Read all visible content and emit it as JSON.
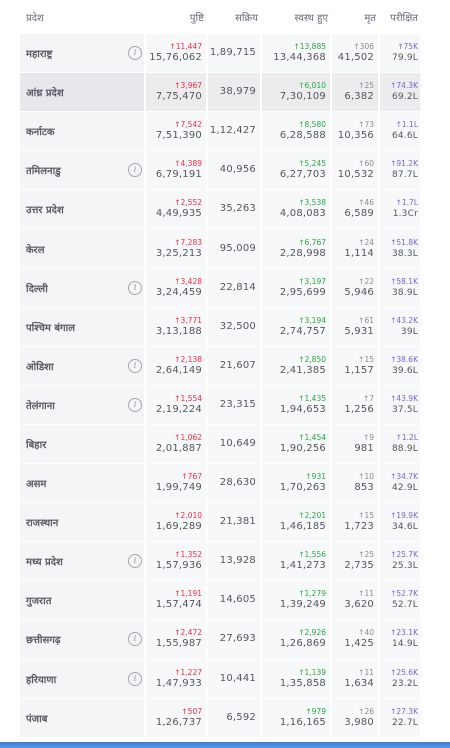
{
  "headers": {
    "state": "प्रदेश",
    "confirmed": "पुष्टि",
    "active": "सक्रिय",
    "recovered": "स्वस्थ हुए",
    "deceased": "मृत",
    "tested": "परीक्षित"
  },
  "rows": [
    {
      "state": "महाराष्ट्र",
      "info": true,
      "c_delta": "↑11,447",
      "confirmed": "15,76,062",
      "active": "1,89,715",
      "r_delta": "↑13,885",
      "recovered": "13,44,368",
      "d_delta": "↑306",
      "deceased": "41,502",
      "t_delta": "↑75K",
      "tested": "79.9L"
    },
    {
      "state": "आंध्र प्रदेश",
      "info": false,
      "highlight": true,
      "c_delta": "↑3,967",
      "confirmed": "7,75,470",
      "active": "38,979",
      "r_delta": "↑6,010",
      "recovered": "7,30,109",
      "d_delta": "↑25",
      "deceased": "6,382",
      "t_delta": "↑74.3K",
      "tested": "69.2L"
    },
    {
      "state": "कर्नाटक",
      "info": false,
      "c_delta": "↑7,542",
      "confirmed": "7,51,390",
      "active": "1,12,427",
      "r_delta": "↑8,580",
      "recovered": "6,28,588",
      "d_delta": "↑73",
      "deceased": "10,356",
      "t_delta": "↑1.1L",
      "tested": "64.6L"
    },
    {
      "state": "तमिलनाडु",
      "info": true,
      "c_delta": "↑4,389",
      "confirmed": "6,79,191",
      "active": "40,956",
      "r_delta": "↑5,245",
      "recovered": "6,27,703",
      "d_delta": "↑60",
      "deceased": "10,532",
      "t_delta": "↑91.2K",
      "tested": "87.7L"
    },
    {
      "state": "उत्तर प्रदेश",
      "info": false,
      "c_delta": "↑2,552",
      "confirmed": "4,49,935",
      "active": "35,263",
      "r_delta": "↑3,538",
      "recovered": "4,08,083",
      "d_delta": "↑46",
      "deceased": "6,589",
      "t_delta": "↑1.7L",
      "tested": "1.3Cr"
    },
    {
      "state": "केरल",
      "info": false,
      "c_delta": "↑7,283",
      "confirmed": "3,25,213",
      "active": "95,009",
      "r_delta": "↑6,767",
      "recovered": "2,28,998",
      "d_delta": "↑24",
      "deceased": "1,114",
      "t_delta": "↑51.8K",
      "tested": "38.3L"
    },
    {
      "state": "दिल्ली",
      "info": true,
      "c_delta": "↑3,428",
      "confirmed": "3,24,459",
      "active": "22,814",
      "r_delta": "↑3,197",
      "recovered": "2,95,699",
      "d_delta": "↑22",
      "deceased": "5,946",
      "t_delta": "↑58.1K",
      "tested": "38.9L"
    },
    {
      "state": "पश्चिम बंगाल",
      "info": false,
      "c_delta": "↑3,771",
      "confirmed": "3,13,188",
      "active": "32,500",
      "r_delta": "↑3,194",
      "recovered": "2,74,757",
      "d_delta": "↑61",
      "deceased": "5,931",
      "t_delta": "↑43.2K",
      "tested": "39L"
    },
    {
      "state": "ओडिशा",
      "info": true,
      "c_delta": "↑2,138",
      "confirmed": "2,64,149",
      "active": "21,607",
      "r_delta": "↑2,850",
      "recovered": "2,41,385",
      "d_delta": "↑15",
      "deceased": "1,157",
      "t_delta": "↑38.6K",
      "tested": "39.6L"
    },
    {
      "state": "तेलंगाना",
      "info": true,
      "c_delta": "↑1,554",
      "confirmed": "2,19,224",
      "active": "23,315",
      "r_delta": "↑1,435",
      "recovered": "1,94,653",
      "d_delta": "↑7",
      "deceased": "1,256",
      "t_delta": "↑43.9K",
      "tested": "37.5L"
    },
    {
      "state": "बिहार",
      "info": false,
      "c_delta": "↑1,062",
      "confirmed": "2,01,887",
      "active": "10,649",
      "r_delta": "↑1,454",
      "recovered": "1,90,256",
      "d_delta": "↑9",
      "deceased": "981",
      "t_delta": "↑1.2L",
      "tested": "88.9L"
    },
    {
      "state": "असम",
      "info": false,
      "c_delta": "↑767",
      "confirmed": "1,99,749",
      "active": "28,630",
      "r_delta": "↑931",
      "recovered": "1,70,263",
      "d_delta": "↑10",
      "deceased": "853",
      "t_delta": "↑34.7K",
      "tested": "42.9L"
    },
    {
      "state": "राजस्थान",
      "info": false,
      "c_delta": "↑2,010",
      "confirmed": "1,69,289",
      "active": "21,381",
      "r_delta": "↑2,201",
      "recovered": "1,46,185",
      "d_delta": "↑15",
      "deceased": "1,723",
      "t_delta": "↑19.9K",
      "tested": "34.6L"
    },
    {
      "state": "मध्य प्रदेश",
      "info": true,
      "c_delta": "↑1,352",
      "confirmed": "1,57,936",
      "active": "13,928",
      "r_delta": "↑1,556",
      "recovered": "1,41,273",
      "d_delta": "↑25",
      "deceased": "2,735",
      "t_delta": "↑25.7K",
      "tested": "25.3L"
    },
    {
      "state": "गुजरात",
      "info": false,
      "c_delta": "↑1,191",
      "confirmed": "1,57,474",
      "active": "14,605",
      "r_delta": "↑1,279",
      "recovered": "1,39,249",
      "d_delta": "↑11",
      "deceased": "3,620",
      "t_delta": "↑52.7K",
      "tested": "52.7L"
    },
    {
      "state": "छत्तीसगढ़",
      "info": true,
      "c_delta": "↑2,472",
      "confirmed": "1,55,987",
      "active": "27,693",
      "r_delta": "↑2,926",
      "recovered": "1,26,869",
      "d_delta": "↑40",
      "deceased": "1,425",
      "t_delta": "↑23.1K",
      "tested": "14.9L"
    },
    {
      "state": "हरियाणा",
      "info": true,
      "c_delta": "↑1,227",
      "confirmed": "1,47,933",
      "active": "10,441",
      "r_delta": "↑1,139",
      "recovered": "1,35,858",
      "d_delta": "↑11",
      "deceased": "1,634",
      "t_delta": "↑25.6K",
      "tested": "23.2L"
    },
    {
      "state": "पंजाब",
      "info": false,
      "c_delta": "↑507",
      "confirmed": "1,26,737",
      "active": "6,592",
      "r_delta": "↑979",
      "recovered": "1,16,165",
      "d_delta": "↑26",
      "deceased": "3,980",
      "t_delta": "↑27.3K",
      "tested": "22.7L"
    }
  ],
  "info_symbol": "i",
  "colors": {
    "confirmed_delta": "#ff2740",
    "recovered_delta": "#28a745",
    "deceased_delta": "#8a8a92",
    "tested_delta": "#7a60d8",
    "row_bg": "#f4f5f7",
    "highlight_bg": "#e7e8ec"
  }
}
